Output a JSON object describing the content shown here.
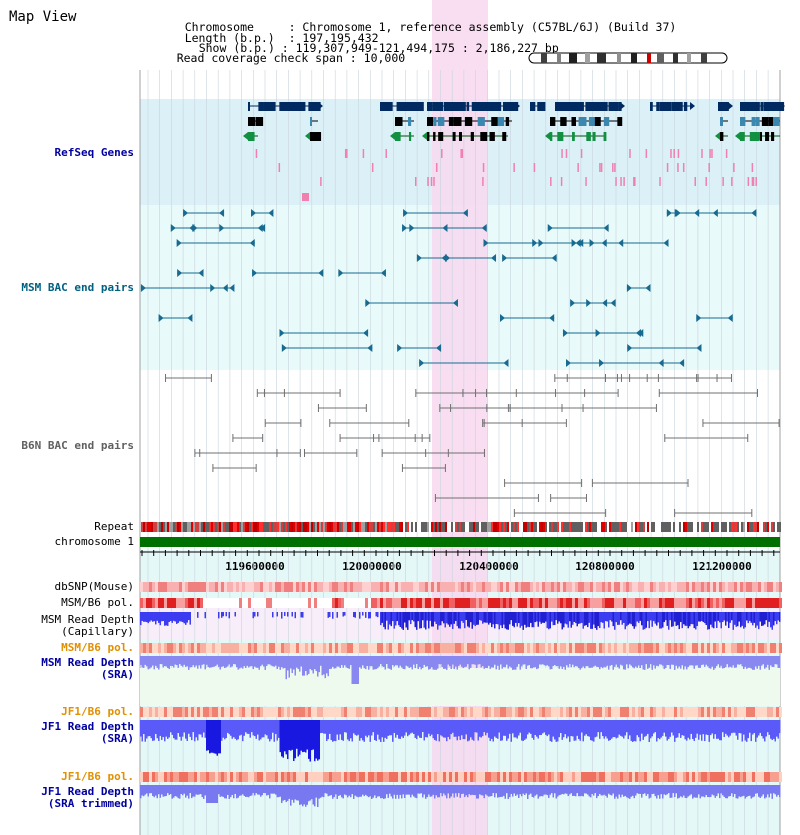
{
  "view_title": "Map View",
  "info": {
    "chromosome_key": "Chromosome",
    "chromosome_value": "Chromosome 1, reference assembly (C57BL/6J) (Build 37)",
    "length_key": "Length (b.p.)",
    "length_value": "197,195,432",
    "show_key": "Show (b.p.)",
    "show_value": "119,307,949-121,494,175 : 2,186,227 bp",
    "coverage_key": "Read coverage check span",
    "coverage_value": "10,000"
  },
  "tracks": {
    "refseq": "RefSeq Genes",
    "msm_bac": "MSM BAC end pairs",
    "b6n_bac": "B6N BAC end pairs",
    "repeat": "Repeat",
    "chromosome": "chromosome 1",
    "dbsnp": "dbSNP(Mouse)",
    "msm_b6_pol_1": "MSM/B6 pol.",
    "msm_depth_cap_1": "MSM Read Depth",
    "msm_depth_cap_2": "(Capillary)",
    "msm_b6_pol_2": "MSM/B6 pol.",
    "msm_depth_sra_1": "MSM Read Depth",
    "msm_depth_sra_2": "(SRA)",
    "jf1_b6_pol_1": "JF1/B6 pol.",
    "jf1_depth_sra_1": "JF1 Read Depth",
    "jf1_depth_sra_2": "(SRA)",
    "jf1_b6_pol_2": "JF1/B6 pol.",
    "jf1_depth_trim_1": "JF1 Read Depth",
    "jf1_depth_trim_2": "(SRA trimmed)"
  },
  "axis": {
    "ticks": [
      "119600000",
      "120000000",
      "120400000",
      "120800000",
      "121200000"
    ]
  },
  "colors": {
    "refseq_bg": "#dcf0f8",
    "msm_bg": "#e8fafa",
    "highlight": "#f8d8f0",
    "label_blue": "#0000a0",
    "label_teal": "#006080",
    "label_orange": "#e09000",
    "chromosome_bar": "#007000"
  }
}
